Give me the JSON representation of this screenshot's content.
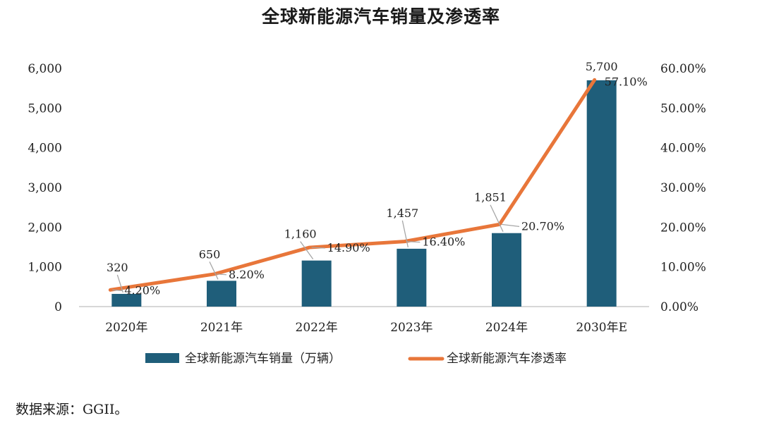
{
  "chart_data": {
    "type": "bar+line",
    "title": "全球新能源汽车销量及渗透率",
    "categories": [
      "2020年",
      "2021年",
      "2022年",
      "2023年",
      "2024年",
      "2030年E"
    ],
    "series": [
      {
        "name": "全球新能源汽车销量（万辆）",
        "type": "bar",
        "axis": "left",
        "color": "#1f5e7a",
        "values": [
          320,
          650,
          1160,
          1457,
          1851,
          5700
        ],
        "labels": [
          "320",
          "650",
          "1,160",
          "1,457",
          "1,851",
          "5,700"
        ]
      },
      {
        "name": "全球新能源汽车渗透率",
        "type": "line",
        "axis": "right",
        "color": "#e8763a",
        "values": [
          4.2,
          8.2,
          14.9,
          16.4,
          20.7,
          57.1
        ],
        "labels": [
          "4.20%",
          "8.20%",
          "14.90%",
          "16.40%",
          "20.70%",
          "57.10%"
        ]
      }
    ],
    "left_axis": {
      "ylim": [
        0,
        6000
      ],
      "ticks": [
        0,
        1000,
        2000,
        3000,
        4000,
        5000,
        6000
      ],
      "tick_labels": [
        "0",
        "1,000",
        "2,000",
        "3,000",
        "4,000",
        "5,000",
        "6,000"
      ]
    },
    "right_axis": {
      "ylim": [
        0,
        60
      ],
      "ticks": [
        0,
        10,
        20,
        30,
        40,
        50,
        60
      ],
      "tick_labels": [
        "0.00%",
        "10.00%",
        "20.00%",
        "30.00%",
        "40.00%",
        "50.00%",
        "60.00%"
      ]
    },
    "legend_position": "bottom"
  },
  "source_text": "数据来源：GGII。"
}
